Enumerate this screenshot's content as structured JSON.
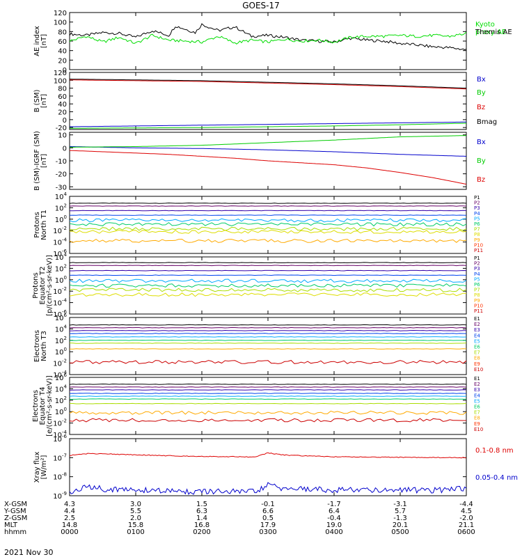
{
  "title": "GOES-17",
  "x_ticks": [
    "0000",
    "0100",
    "0200",
    "0300",
    "0400",
    "0500",
    "0600"
  ],
  "bottom_rows": [
    {
      "label": "X-GSM",
      "values": [
        "4.3",
        "3.0",
        "1.5",
        "-0.1",
        "-1.7",
        "-3.1",
        "-4.4"
      ]
    },
    {
      "label": "Y-GSM",
      "values": [
        "4.4",
        "5.5",
        "6.3",
        "6.6",
        "6.4",
        "5.7",
        "4.5"
      ]
    },
    {
      "label": "Z-GSM",
      "values": [
        "2.5",
        "2.0",
        "1.4",
        "0.5",
        "-0.4",
        "-1.3",
        "-2.0"
      ]
    },
    {
      "label": "MLT",
      "values": [
        "14.8",
        "15.8",
        "16.8",
        "17.9",
        "19.0",
        "20.1",
        "21.1"
      ]
    },
    {
      "label": "hhmm",
      "values": [
        "0000",
        "0100",
        "0200",
        "0300",
        "0400",
        "0500",
        "0600"
      ]
    }
  ],
  "date": "2021 Nov 30",
  "chart_data": [
    {
      "type": "line",
      "ylabel": [
        "AE index",
        "[nT]"
      ],
      "ylim": [
        0,
        120
      ],
      "ticks": [
        [
          "0",
          "0"
        ],
        [
          "20",
          "20"
        ],
        [
          "40",
          "40"
        ],
        [
          "60",
          "60"
        ],
        [
          "80",
          "80"
        ],
        [
          "100",
          "100"
        ],
        [
          "120",
          "120"
        ]
      ],
      "series": [
        {
          "name": "Themis AE",
          "color": "#000000",
          "x": [
            0,
            0.25,
            0.5,
            0.75,
            1,
            1.25,
            1.5,
            1.6,
            1.75,
            1.9,
            2,
            2.25,
            2.5,
            2.75,
            3,
            3.25,
            3.5,
            3.75,
            4,
            4.25,
            4.5,
            4.75,
            5,
            5.25,
            5.5,
            5.75,
            6
          ],
          "y": [
            75,
            72,
            78,
            76,
            68,
            82,
            72,
            92,
            85,
            78,
            95,
            82,
            90,
            70,
            72,
            68,
            62,
            60,
            58,
            66,
            62,
            60,
            55,
            52,
            48,
            46,
            42
          ]
        },
        {
          "name": "Kyoto proxy AE",
          "color": "#00dd00",
          "x": [
            0,
            0.25,
            0.5,
            0.75,
            1,
            1.25,
            1.5,
            1.75,
            2,
            2.25,
            2.5,
            2.75,
            3,
            3.25,
            3.5,
            3.75,
            4,
            4.25,
            4.5,
            4.75,
            5,
            5.25,
            5.5,
            5.75,
            6
          ],
          "y": [
            60,
            70,
            58,
            68,
            55,
            72,
            62,
            60,
            58,
            70,
            56,
            62,
            58,
            64,
            60,
            62,
            58,
            68,
            70,
            70,
            72,
            70,
            72,
            70,
            76
          ]
        }
      ],
      "legend": [
        {
          "text": "Kyoto\nproxy AE",
          "color": "#00dd00"
        },
        {
          "text": "Themis AE",
          "color": "#000000"
        }
      ]
    },
    {
      "type": "line",
      "ylabel": [
        "B (SM)",
        "[nT]"
      ],
      "ylim": [
        -25,
        120
      ],
      "ticks": [
        [
          "-20",
          "-20"
        ],
        [
          "0",
          "0"
        ],
        [
          "20",
          "20"
        ],
        [
          "40",
          "40"
        ],
        [
          "60",
          "60"
        ],
        [
          "80",
          "80"
        ],
        [
          "100",
          "100"
        ],
        [
          "120",
          "120"
        ]
      ],
      "series": [
        {
          "name": "Bx",
          "color": "#0000cc",
          "x": [
            0,
            1,
            2,
            3,
            4,
            5,
            6
          ],
          "y": [
            -18,
            -16,
            -14,
            -12,
            -10,
            -8,
            -6
          ]
        },
        {
          "name": "By",
          "color": "#00cc00",
          "x": [
            0,
            1,
            2,
            3,
            4,
            5,
            6
          ],
          "y": [
            -22,
            -21,
            -20,
            -18,
            -16,
            -13,
            -9
          ]
        },
        {
          "name": "Bz",
          "color": "#dd0000",
          "x": [
            0,
            1,
            2,
            3,
            4,
            5,
            6
          ],
          "y": [
            101,
            99,
            97,
            93,
            89,
            84,
            78
          ]
        },
        {
          "name": "Bmag",
          "color": "#000000",
          "x": [
            0,
            1,
            2,
            3,
            4,
            5,
            6
          ],
          "y": [
            103,
            101,
            99,
            95,
            91,
            86,
            80
          ]
        }
      ],
      "legend": [
        {
          "text": "Bx",
          "color": "#0000cc"
        },
        {
          "text": "By",
          "color": "#00cc00"
        },
        {
          "text": "Bz",
          "color": "#dd0000"
        },
        {
          "text": "Bmag",
          "color": "#000000"
        }
      ]
    },
    {
      "type": "line",
      "ylabel": [
        "B (SM)-IGRF (SM)",
        "[nT]"
      ],
      "ylim": [
        -32,
        12
      ],
      "ticks": [
        [
          "-30",
          "-30"
        ],
        [
          "-20",
          "-20"
        ],
        [
          "-10",
          "-10"
        ],
        [
          "0",
          "0"
        ],
        [
          "10",
          "10"
        ]
      ],
      "series": [
        {
          "name": "Bx",
          "color": "#0000cc",
          "x": [
            0,
            1,
            2,
            3,
            4,
            5,
            6
          ],
          "y": [
            1,
            0,
            -0.5,
            -1.5,
            -3,
            -5,
            -6.5
          ]
        },
        {
          "name": "By",
          "color": "#00cc00",
          "x": [
            0,
            1,
            2,
            3,
            4,
            5,
            6
          ],
          "y": [
            0.5,
            1,
            2,
            4,
            6,
            8.5,
            9.5
          ]
        },
        {
          "name": "Bz",
          "color": "#dd0000",
          "x": [
            0,
            0.5,
            1,
            1.5,
            2,
            2.5,
            3,
            3.5,
            4,
            4.5,
            5,
            5.5,
            6
          ],
          "y": [
            -2,
            -3,
            -4,
            -5,
            -6.5,
            -8,
            -10,
            -11.5,
            -13,
            -15.5,
            -19,
            -23,
            -28
          ]
        }
      ],
      "legend": [
        {
          "text": "Bx",
          "color": "#0000cc"
        },
        {
          "text": "By",
          "color": "#00cc00"
        },
        {
          "text": "Bz",
          "color": "#dd0000"
        }
      ]
    },
    {
      "type": "line",
      "log": true,
      "ylabel": [
        "Protons",
        "North T1"
      ],
      "ylim": [
        -6,
        4
      ],
      "ticks": [
        [
          "10",
          "-6"
        ],
        [
          "10",
          "-4"
        ],
        [
          "10",
          "-2"
        ],
        [
          "10",
          "0"
        ],
        [
          "10",
          "2"
        ],
        [
          "10",
          "4"
        ]
      ],
      "series": [
        {
          "name": "P1",
          "color": "#000000",
          "level": 2.8
        },
        {
          "name": "P2",
          "color": "#660066",
          "level": 2.3
        },
        {
          "name": "P3",
          "color": "#3300aa",
          "level": 1.5
        },
        {
          "name": "P4",
          "color": "#0044ee",
          "level": 0.7
        },
        {
          "name": "P5",
          "color": "#00a8ff",
          "level": -0.2
        },
        {
          "name": "P6",
          "color": "#00cc66",
          "level": -0.9
        },
        {
          "name": "P7",
          "color": "#aadd00",
          "level": -1.7
        },
        {
          "name": "P8",
          "color": "#dddd00",
          "level": -2.2
        },
        {
          "name": "P9",
          "color": "#ffaa00",
          "level": -3.8
        }
      ],
      "legend": [
        {
          "text": "P1",
          "color": "#000000"
        },
        {
          "text": "P2",
          "color": "#660066"
        },
        {
          "text": "P3",
          "color": "#3300aa"
        },
        {
          "text": "P4",
          "color": "#0044ee"
        },
        {
          "text": "P5",
          "color": "#00a8ff"
        },
        {
          "text": "P6",
          "color": "#00cc66"
        },
        {
          "text": "P7",
          "color": "#aadd00"
        },
        {
          "text": "P8",
          "color": "#dddd00"
        },
        {
          "text": "P9",
          "color": "#ffaa00"
        },
        {
          "text": "P10",
          "color": "#ff3300"
        },
        {
          "text": "P11",
          "color": "#cc0000"
        }
      ]
    },
    {
      "type": "line",
      "log": true,
      "ylabel": [
        "Protons",
        "Equator T2",
        "[p/(cm²-s-sr-keV)]"
      ],
      "ylim": [
        -6,
        4
      ],
      "ticks": [
        [
          "10",
          "-6"
        ],
        [
          "10",
          "-4"
        ],
        [
          "10",
          "-2"
        ],
        [
          "10",
          "0"
        ],
        [
          "10",
          "2"
        ],
        [
          "10",
          "4"
        ]
      ],
      "series": [
        {
          "name": "P1",
          "color": "#000000",
          "level": 3.0
        },
        {
          "name": "P2",
          "color": "#660066",
          "level": 2.5
        },
        {
          "name": "P3",
          "color": "#3300aa",
          "level": 1.6
        },
        {
          "name": "P4",
          "color": "#0044ee",
          "level": 0.8
        },
        {
          "name": "P5",
          "color": "#00a8ff",
          "level": -0.2
        },
        {
          "name": "P6",
          "color": "#00cc66",
          "level": -1.0
        },
        {
          "name": "P7",
          "color": "#aadd00",
          "level": -1.8
        },
        {
          "name": "P8",
          "color": "#dddd00",
          "level": -2.6
        }
      ],
      "legend": [
        {
          "text": "P1",
          "color": "#000000"
        },
        {
          "text": "P2",
          "color": "#660066"
        },
        {
          "text": "P3",
          "color": "#3300aa"
        },
        {
          "text": "P4",
          "color": "#0044ee"
        },
        {
          "text": "P5",
          "color": "#00a8ff"
        },
        {
          "text": "P6",
          "color": "#00cc66"
        },
        {
          "text": "P7",
          "color": "#aadd00"
        },
        {
          "text": "P8",
          "color": "#dddd00"
        },
        {
          "text": "P9",
          "color": "#ffaa00"
        },
        {
          "text": "P10",
          "color": "#ff3300"
        },
        {
          "text": "P11",
          "color": "#cc0000"
        }
      ]
    },
    {
      "type": "line",
      "log": true,
      "ylabel": [
        "Electrons",
        "North T3"
      ],
      "ylim": [
        -4,
        6
      ],
      "ticks": [
        [
          "10",
          "-4"
        ],
        [
          "10",
          "-2"
        ],
        [
          "10",
          "0"
        ],
        [
          "10",
          "2"
        ],
        [
          "10",
          "4"
        ],
        [
          "10",
          "6"
        ]
      ],
      "series": [
        {
          "name": "E1",
          "color": "#000000",
          "level": 4.7
        },
        {
          "name": "E2",
          "color": "#660066",
          "level": 4.2
        },
        {
          "name": "E3",
          "color": "#3300aa",
          "level": 3.7
        },
        {
          "name": "E4",
          "color": "#0044ee",
          "level": 3.2
        },
        {
          "name": "E5",
          "color": "#00a8ff",
          "level": 2.6
        },
        {
          "name": "E6",
          "color": "#00cc66",
          "level": 2.0
        },
        {
          "name": "E7",
          "color": "#aadd00",
          "level": 1.5
        },
        {
          "name": "E8",
          "color": "#ffaa00",
          "level": 0.5
        },
        {
          "name": "E9",
          "color": "#cc0000",
          "level": -1.8
        }
      ],
      "legend": [
        {
          "text": "E1",
          "color": "#000000"
        },
        {
          "text": "E2",
          "color": "#660066"
        },
        {
          "text": "E3",
          "color": "#3300aa"
        },
        {
          "text": "E4",
          "color": "#0044ee"
        },
        {
          "text": "E5",
          "color": "#00a8ff"
        },
        {
          "text": "E6",
          "color": "#00cc66"
        },
        {
          "text": "E7",
          "color": "#aadd00"
        },
        {
          "text": "E8",
          "color": "#ffaa00"
        },
        {
          "text": "E9",
          "color": "#ff3300"
        },
        {
          "text": "E10",
          "color": "#cc0000"
        }
      ]
    },
    {
      "type": "line",
      "log": true,
      "ylabel": [
        "Electrons",
        "Equator T4",
        "[e/(cm²-s-sr-keV)]"
      ],
      "ylim": [
        -4,
        6
      ],
      "ticks": [
        [
          "10",
          "-4"
        ],
        [
          "10",
          "-2"
        ],
        [
          "10",
          "0"
        ],
        [
          "10",
          "2"
        ],
        [
          "10",
          "4"
        ],
        [
          "10",
          "6"
        ]
      ],
      "series": [
        {
          "name": "E1",
          "color": "#000000",
          "level": 4.8
        },
        {
          "name": "E2",
          "color": "#660066",
          "level": 4.3
        },
        {
          "name": "E3",
          "color": "#3300aa",
          "level": 3.8
        },
        {
          "name": "E4",
          "color": "#0044ee",
          "level": 3.2
        },
        {
          "name": "E5",
          "color": "#00a8ff",
          "level": 2.7
        },
        {
          "name": "E6",
          "color": "#00cc66",
          "level": 2.2
        },
        {
          "name": "E7",
          "color": "#aadd00",
          "level": 1.4
        },
        {
          "name": "E8",
          "color": "#ffaa00",
          "level": -0.2
        },
        {
          "name": "E9",
          "color": "#cc0000",
          "level": -1.5
        }
      ],
      "legend": [
        {
          "text": "E1",
          "color": "#000000"
        },
        {
          "text": "E2",
          "color": "#660066"
        },
        {
          "text": "E3",
          "color": "#3300aa"
        },
        {
          "text": "E4",
          "color": "#0044ee"
        },
        {
          "text": "E5",
          "color": "#00a8ff"
        },
        {
          "text": "E6",
          "color": "#00cc66"
        },
        {
          "text": "E7",
          "color": "#aadd00"
        },
        {
          "text": "E8",
          "color": "#ffaa00"
        },
        {
          "text": "E9",
          "color": "#ff3300"
        },
        {
          "text": "E10",
          "color": "#cc0000"
        }
      ]
    },
    {
      "type": "line",
      "log": true,
      "ylabel": [
        "Xray flux",
        "[W/m²]"
      ],
      "ylim": [
        -9,
        -6
      ],
      "ticks": [
        [
          "10",
          "-9"
        ],
        [
          "10",
          "-8"
        ],
        [
          "10",
          "-7"
        ],
        [
          "10",
          "-6"
        ]
      ],
      "series": [
        {
          "name": "0.1-0.8 nm",
          "color": "#dd0000",
          "x": [
            0,
            0.3,
            0.5,
            1,
            1.5,
            2,
            2.5,
            2.8,
            3,
            3.2,
            3.5,
            4,
            4.5,
            5,
            5.5,
            6
          ],
          "y": [
            -6.88,
            -6.78,
            -6.8,
            -6.85,
            -6.9,
            -6.93,
            -6.95,
            -6.96,
            -6.75,
            -6.85,
            -6.9,
            -6.95,
            -6.97,
            -6.98,
            -6.99,
            -7.0
          ]
        },
        {
          "name": "0.05-0.4 nm",
          "color": "#0000cc",
          "x": [
            0,
            0.3,
            0.5,
            1,
            1.5,
            2,
            2.5,
            2.8,
            3,
            3.2,
            3.5,
            4,
            4.5,
            5,
            5.5,
            6
          ],
          "y": [
            -8.85,
            -8.5,
            -8.65,
            -8.7,
            -8.75,
            -8.8,
            -8.78,
            -8.8,
            -8.45,
            -8.6,
            -8.65,
            -8.7,
            -8.68,
            -8.7,
            -8.72,
            -8.6
          ]
        }
      ],
      "legend": [
        {
          "text": "0.1-0.8 nm",
          "color": "#dd0000"
        },
        {
          "text": "0.05-0.4 nm",
          "color": "#0000cc"
        }
      ]
    }
  ]
}
